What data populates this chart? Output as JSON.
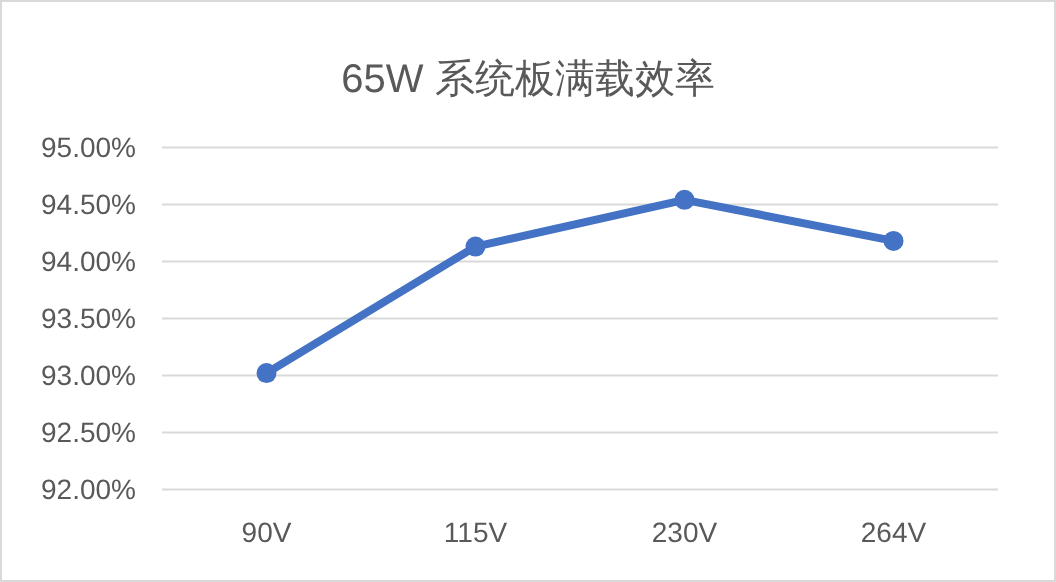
{
  "chart_data": {
    "type": "line",
    "title": "65W 系统板满载效率",
    "categories": [
      "90V",
      "115V",
      "230V",
      "264V"
    ],
    "series": [
      {
        "color": "#4472c4",
        "values": [
          93.02,
          94.13,
          94.54,
          94.18
        ]
      }
    ],
    "ylim": [
      92,
      95
    ],
    "yticks": [
      {
        "value": 92,
        "label": "92.00%"
      },
      {
        "value": 92.5,
        "label": "92.50%"
      },
      {
        "value": 93,
        "label": "93.00%"
      },
      {
        "value": 93.5,
        "label": "93.50%"
      },
      {
        "value": 94,
        "label": "94.00%"
      },
      {
        "value": 94.5,
        "label": "94.50%"
      },
      {
        "value": 95,
        "label": "95.00%"
      }
    ],
    "grid": "y",
    "marker": "circle"
  }
}
